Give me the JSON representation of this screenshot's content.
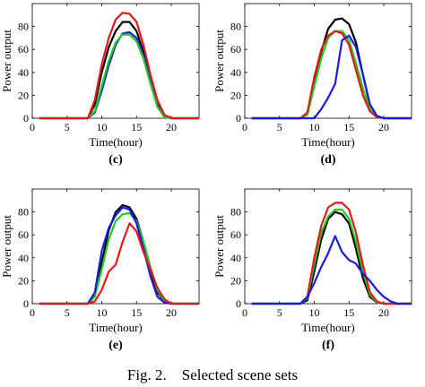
{
  "caption": "Fig. 2.    Selected scene sets",
  "series_colors": [
    "#000000",
    "#e31a1c",
    "#22cc22",
    "#1a1ae0"
  ],
  "chart_data": [
    {
      "type": "line",
      "label": "(c)",
      "xlabel": "Time(hour)",
      "ylabel": "Power output",
      "xlim": [
        0,
        24
      ],
      "ylim": [
        0,
        100
      ],
      "xticks": [
        0,
        5,
        10,
        15,
        20
      ],
      "yticks": [
        0,
        20,
        40,
        60,
        80
      ],
      "x": [
        1,
        2,
        3,
        4,
        5,
        6,
        7,
        8,
        9,
        10,
        11,
        12,
        13,
        14,
        15,
        16,
        17,
        18,
        19,
        20,
        21,
        22,
        23,
        24
      ],
      "series": [
        {
          "color": "#000000",
          "values": [
            0,
            0,
            0,
            0,
            0,
            0,
            0,
            0,
            12,
            40,
            62,
            76,
            84,
            84,
            76,
            58,
            35,
            14,
            3,
            0,
            0,
            0,
            0,
            0
          ]
        },
        {
          "color": "#1a1ae0",
          "values": [
            0,
            0,
            0,
            0,
            0,
            0,
            0,
            0,
            5,
            24,
            46,
            64,
            74,
            75,
            70,
            55,
            32,
            12,
            2,
            0,
            0,
            0,
            0,
            0
          ]
        },
        {
          "color": "#22cc22",
          "values": [
            0,
            0,
            0,
            0,
            0,
            0,
            0,
            0,
            6,
            28,
            50,
            66,
            73,
            73,
            67,
            52,
            30,
            10,
            1,
            0,
            0,
            0,
            0,
            0
          ]
        },
        {
          "color": "#e31a1c",
          "values": [
            0,
            0,
            0,
            0,
            0,
            0,
            0,
            0,
            16,
            47,
            70,
            86,
            92,
            91,
            84,
            64,
            38,
            16,
            3,
            0,
            0,
            0,
            0,
            0
          ]
        }
      ]
    },
    {
      "type": "line",
      "label": "(d)",
      "xlabel": "Time(hour)",
      "ylabel": "Power output",
      "xlim": [
        0,
        24
      ],
      "ylim": [
        0,
        100
      ],
      "xticks": [
        0,
        5,
        10,
        15,
        20
      ],
      "yticks": [
        0,
        20,
        40,
        60,
        80
      ],
      "x": [
        1,
        2,
        3,
        4,
        5,
        6,
        7,
        8,
        9,
        10,
        11,
        12,
        13,
        14,
        15,
        16,
        17,
        18,
        19,
        20,
        21,
        22,
        23,
        24
      ],
      "series": [
        {
          "color": "#000000",
          "values": [
            0,
            0,
            0,
            0,
            0,
            0,
            0,
            0,
            4,
            30,
            58,
            78,
            86,
            87,
            82,
            66,
            38,
            12,
            2,
            0,
            0,
            0,
            0,
            0
          ]
        },
        {
          "color": "#22cc22",
          "values": [
            0,
            0,
            0,
            0,
            0,
            0,
            0,
            0,
            3,
            28,
            52,
            70,
            76,
            76,
            68,
            48,
            26,
            8,
            1,
            0,
            0,
            0,
            0,
            0
          ]
        },
        {
          "color": "#e31a1c",
          "values": [
            0,
            0,
            0,
            0,
            0,
            0,
            0,
            0,
            5,
            36,
            60,
            72,
            76,
            74,
            64,
            42,
            20,
            6,
            1,
            0,
            0,
            0,
            0,
            0
          ]
        },
        {
          "color": "#1a1ae0",
          "values": [
            0,
            0,
            0,
            0,
            0,
            0,
            0,
            0,
            0,
            0,
            8,
            18,
            30,
            68,
            72,
            62,
            38,
            12,
            2,
            0,
            0,
            0,
            0,
            0
          ]
        }
      ]
    },
    {
      "type": "line",
      "label": "(e)",
      "xlabel": "Time(hour)",
      "ylabel": "Power output",
      "xlim": [
        0,
        24
      ],
      "ylim": [
        0,
        100
      ],
      "xticks": [
        0,
        5,
        10,
        15,
        20
      ],
      "yticks": [
        0,
        20,
        40,
        60,
        80
      ],
      "x": [
        1,
        2,
        3,
        4,
        5,
        6,
        7,
        8,
        9,
        10,
        11,
        12,
        13,
        14,
        15,
        16,
        17,
        18,
        19,
        20,
        21,
        22,
        23,
        24
      ],
      "series": [
        {
          "color": "#000000",
          "values": [
            0,
            0,
            0,
            0,
            0,
            0,
            0,
            0,
            8,
            36,
            64,
            80,
            86,
            84,
            74,
            54,
            30,
            10,
            2,
            0,
            0,
            0,
            0,
            0
          ]
        },
        {
          "color": "#22cc22",
          "values": [
            0,
            0,
            0,
            0,
            0,
            0,
            0,
            0,
            6,
            30,
            56,
            72,
            78,
            79,
            72,
            54,
            32,
            12,
            2,
            0,
            0,
            0,
            0,
            0
          ]
        },
        {
          "color": "#1a1ae0",
          "values": [
            0,
            0,
            0,
            0,
            0,
            0,
            0,
            0,
            10,
            46,
            66,
            77,
            84,
            82,
            70,
            48,
            24,
            6,
            1,
            0,
            0,
            0,
            0,
            0
          ]
        },
        {
          "color": "#e31a1c",
          "values": [
            0,
            0,
            0,
            0,
            0,
            0,
            0,
            0,
            2,
            12,
            28,
            34,
            54,
            70,
            63,
            45,
            30,
            14,
            4,
            0,
            0,
            0,
            0,
            0
          ]
        }
      ]
    },
    {
      "type": "line",
      "label": "(f)",
      "xlabel": "Time(hour)",
      "ylabel": "Power output",
      "xlim": [
        0,
        24
      ],
      "ylim": [
        0,
        100
      ],
      "xticks": [
        0,
        5,
        10,
        15,
        20
      ],
      "yticks": [
        0,
        20,
        40,
        60,
        80
      ],
      "x": [
        1,
        2,
        3,
        4,
        5,
        6,
        7,
        8,
        9,
        10,
        11,
        12,
        13,
        14,
        15,
        16,
        17,
        18,
        19,
        20,
        21,
        22,
        23,
        24
      ],
      "series": [
        {
          "color": "#000000",
          "values": [
            0,
            0,
            0,
            0,
            0,
            0,
            0,
            0,
            3,
            28,
            56,
            74,
            80,
            78,
            70,
            48,
            22,
            6,
            1,
            0,
            0,
            0,
            0,
            0
          ]
        },
        {
          "color": "#22cc22",
          "values": [
            0,
            0,
            0,
            0,
            0,
            0,
            0,
            0,
            5,
            34,
            62,
            76,
            82,
            82,
            74,
            54,
            28,
            8,
            1,
            0,
            0,
            0,
            0,
            0
          ]
        },
        {
          "color": "#e31a1c",
          "values": [
            0,
            0,
            0,
            0,
            0,
            0,
            0,
            0,
            6,
            40,
            68,
            84,
            88,
            88,
            82,
            62,
            34,
            10,
            2,
            0,
            0,
            0,
            0,
            0
          ]
        },
        {
          "color": "#1a1ae0",
          "values": [
            0,
            0,
            0,
            0,
            0,
            0,
            0,
            0,
            6,
            18,
            32,
            44,
            59,
            45,
            38,
            35,
            26,
            20,
            12,
            6,
            2,
            0,
            0,
            0
          ]
        }
      ]
    }
  ]
}
